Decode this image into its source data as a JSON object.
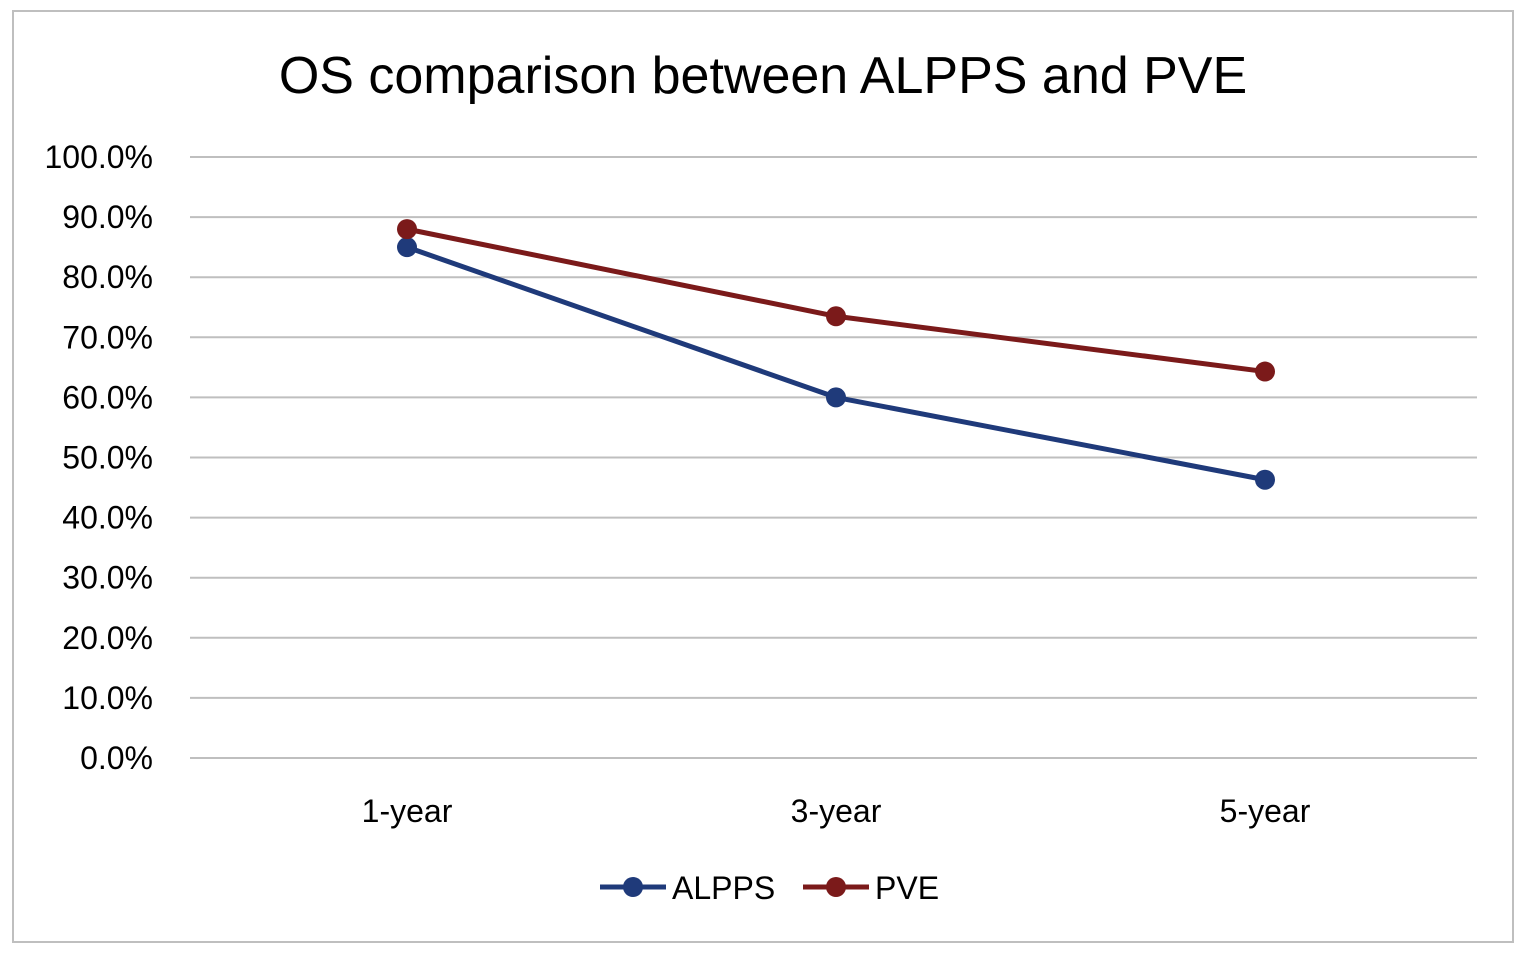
{
  "chart_data": {
    "type": "line",
    "title": "OS comparison between ALPPS and PVE",
    "categories": [
      "1-year",
      "3-year",
      "5-year"
    ],
    "ylim": [
      0,
      100
    ],
    "y_ticks": [
      0,
      10,
      20,
      30,
      40,
      50,
      60,
      70,
      80,
      90,
      100
    ],
    "y_tick_labels": [
      "0.0%",
      "10.0%",
      "20.0%",
      "30.0%",
      "40.0%",
      "50.0%",
      "60.0%",
      "70.0%",
      "80.0%",
      "90.0%",
      "100.0%"
    ],
    "grid": true,
    "legend": "bottom",
    "series": [
      {
        "name": "ALPPS",
        "color": "#1f3a7a",
        "values": [
          85.0,
          60.0,
          46.3
        ]
      },
      {
        "name": "PVE",
        "color": "#7b1a1a",
        "values": [
          88.0,
          73.5,
          64.3
        ]
      }
    ]
  }
}
